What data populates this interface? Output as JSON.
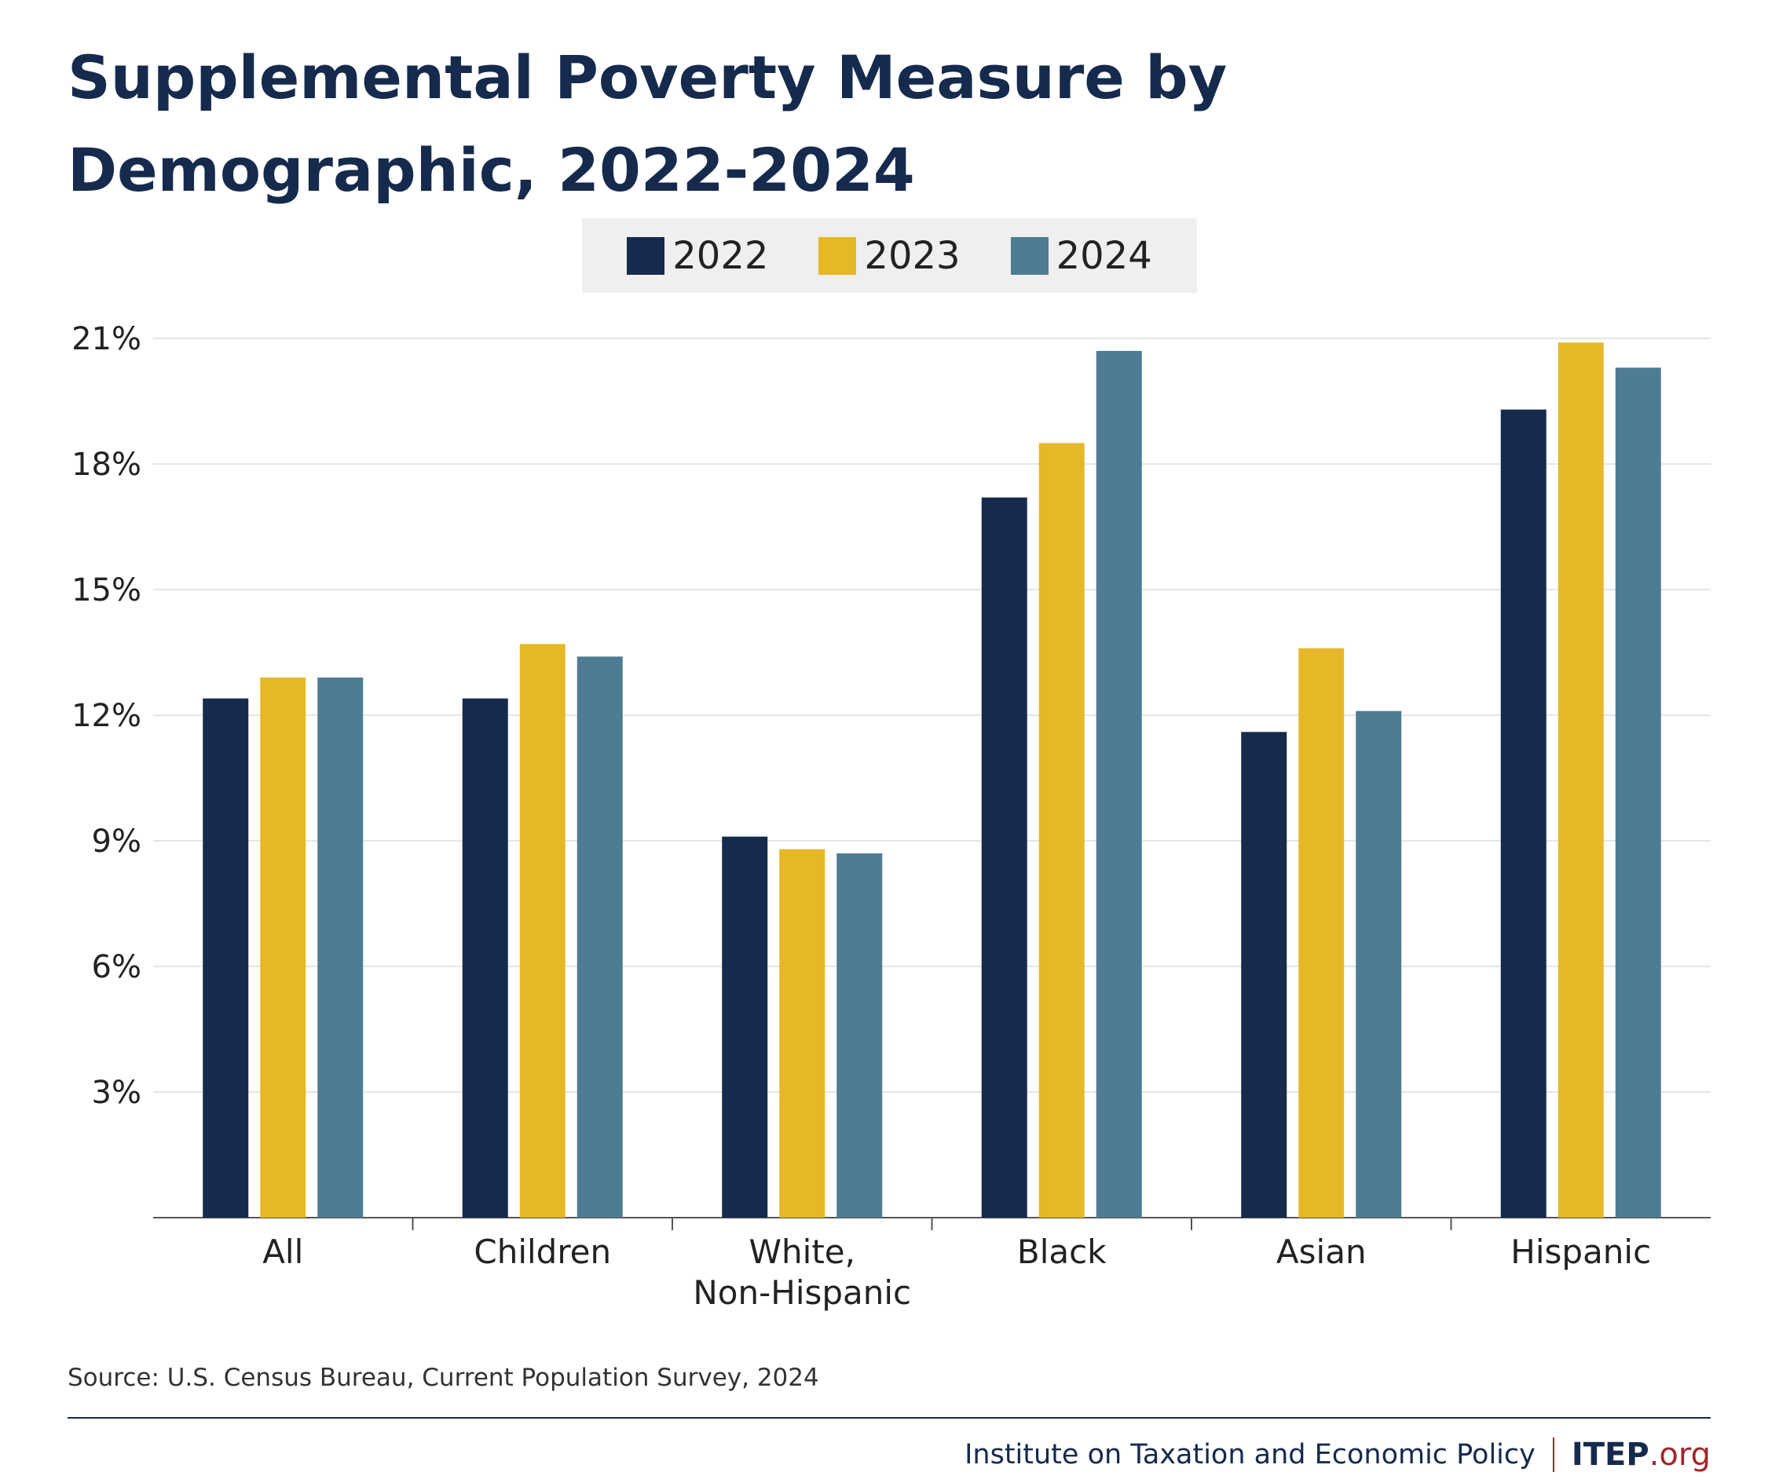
{
  "title": "Supplemental Poverty Measure by Demographic, 2022-2024",
  "source": "Source: U.S. Census Bureau, Current Population Survey, 2024",
  "footer": {
    "org_name": "Institute on Taxation and Economic Policy",
    "logo_main": "ITEP",
    "logo_suffix": ".org"
  },
  "chart_data": {
    "type": "bar",
    "title": "Supplemental Poverty Measure by Demographic, 2022-2024",
    "xlabel": "",
    "ylabel": "",
    "ylim": [
      0,
      21
    ],
    "yticks": [
      3,
      6,
      9,
      12,
      15,
      18,
      21
    ],
    "ytick_labels": [
      "3%",
      "6%",
      "9%",
      "12%",
      "15%",
      "18%",
      "21%"
    ],
    "categories": [
      [
        "All"
      ],
      [
        "Children"
      ],
      [
        "White,",
        "Non-Hispanic"
      ],
      [
        "Black"
      ],
      [
        "Asian"
      ],
      [
        "Hispanic"
      ]
    ],
    "series": [
      {
        "name": "2022",
        "color": "#152a4d",
        "values": [
          12.4,
          12.4,
          9.1,
          17.2,
          11.6,
          19.3
        ]
      },
      {
        "name": "2023",
        "color": "#e6b827",
        "values": [
          12.9,
          13.7,
          8.8,
          18.5,
          13.6,
          20.9
        ]
      },
      {
        "name": "2024",
        "color": "#4e7c92",
        "values": [
          12.9,
          13.4,
          8.7,
          20.7,
          12.1,
          20.3
        ]
      }
    ],
    "grid": true,
    "legend": "top-center"
  }
}
